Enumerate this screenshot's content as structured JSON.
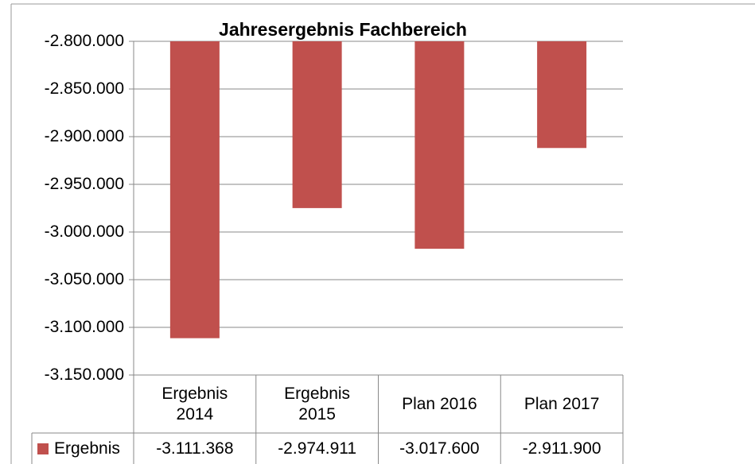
{
  "chart_data": {
    "type": "bar",
    "title": "Jahresergebnis Fachbereich",
    "categories": [
      "Ergebnis 2014",
      "Ergebnis 2015",
      "Plan 2016",
      "Plan 2017"
    ],
    "series": [
      {
        "name": "Ergebnis",
        "color": "#c0504d",
        "values": [
          -3111368,
          -2974911,
          -3017600,
          -2911900
        ],
        "value_labels": [
          "-3.111.368",
          "-2.974.911",
          "-3.017.600",
          "-2.911.900"
        ]
      }
    ],
    "ylim": [
      -3150000,
      -2800000
    ],
    "yticks": [
      {
        "value": -2800000,
        "label": "-2.800.000"
      },
      {
        "value": -2850000,
        "label": "-2.850.000"
      },
      {
        "value": -2900000,
        "label": "-2.900.000"
      },
      {
        "value": -2950000,
        "label": "-2.950.000"
      },
      {
        "value": -3000000,
        "label": "-3.000.000"
      },
      {
        "value": -3050000,
        "label": "-3.050.000"
      },
      {
        "value": -3100000,
        "label": "-3.100.000"
      },
      {
        "value": -3150000,
        "label": "-3.150.000"
      }
    ],
    "grid": true,
    "data_table": true
  }
}
